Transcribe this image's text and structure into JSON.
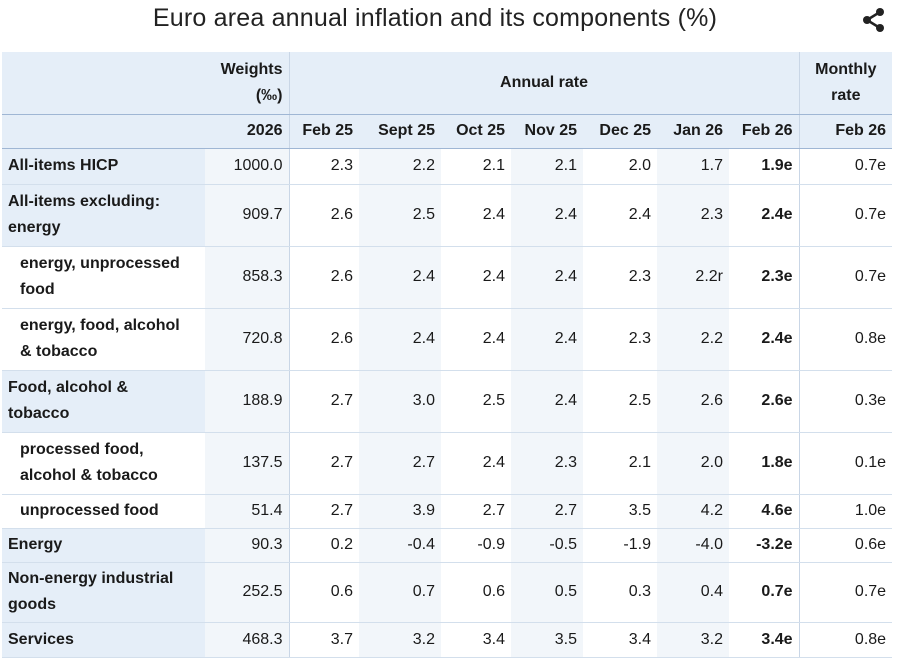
{
  "title": "Euro area annual inflation and its components (%)",
  "icons": {
    "share": "share-icon"
  },
  "header": {
    "weights_line1": "Weights",
    "weights_line2": "(‰)",
    "annual_rate": "Annual rate",
    "monthly_line1": "Monthly",
    "monthly_line2": "rate",
    "weights_year": "2026",
    "periods": [
      "Feb 25",
      "Sept 25",
      "Oct 25",
      "Nov 25",
      "Dec 25",
      "Jan 26",
      "Feb 26"
    ],
    "monthly_period": "Feb 26"
  },
  "rows": [
    {
      "label": [
        "All-items HICP"
      ],
      "level": 0,
      "weight": "1000.0",
      "values": [
        "2.3",
        "2.2",
        "2.1",
        "2.1",
        "2.0",
        "1.7",
        "1.9e"
      ],
      "monthly": "0.7e"
    },
    {
      "label": [
        "All-items excluding:",
        "energy"
      ],
      "level": 0,
      "weight": "909.7",
      "values": [
        "2.6",
        "2.5",
        "2.4",
        "2.4",
        "2.4",
        "2.3",
        "2.4e"
      ],
      "monthly": "0.7e"
    },
    {
      "label": [
        "energy, unprocessed",
        "food"
      ],
      "level": 1,
      "weight": "858.3",
      "values": [
        "2.6",
        "2.4",
        "2.4",
        "2.4",
        "2.3",
        "2.2r",
        "2.3e"
      ],
      "monthly": "0.7e"
    },
    {
      "label": [
        "energy, food, alcohol",
        "& tobacco"
      ],
      "level": 1,
      "weight": "720.8",
      "values": [
        "2.6",
        "2.4",
        "2.4",
        "2.4",
        "2.3",
        "2.2",
        "2.4e"
      ],
      "monthly": "0.8e"
    },
    {
      "label": [
        "Food, alcohol &",
        "tobacco"
      ],
      "level": 0,
      "weight": "188.9",
      "values": [
        "2.7",
        "3.0",
        "2.5",
        "2.4",
        "2.5",
        "2.6",
        "2.6e"
      ],
      "monthly": "0.3e"
    },
    {
      "label": [
        "processed food,",
        "alcohol & tobacco"
      ],
      "level": 1,
      "weight": "137.5",
      "values": [
        "2.7",
        "2.7",
        "2.4",
        "2.3",
        "2.1",
        "2.0",
        "1.8e"
      ],
      "monthly": "0.1e"
    },
    {
      "label": [
        "unprocessed food"
      ],
      "level": 1,
      "weight": "51.4",
      "values": [
        "2.7",
        "3.9",
        "2.7",
        "2.7",
        "3.5",
        "4.2",
        "4.6e"
      ],
      "monthly": "1.0e"
    },
    {
      "label": [
        "Energy"
      ],
      "level": 0,
      "weight": "90.3",
      "values": [
        "0.2",
        "-0.4",
        "-0.9",
        "-0.5",
        "-1.9",
        "-4.0",
        "-3.2e"
      ],
      "monthly": "0.6e"
    },
    {
      "label": [
        "Non-energy industrial",
        "goods"
      ],
      "level": 0,
      "weight": "252.5",
      "values": [
        "0.6",
        "0.7",
        "0.6",
        "0.5",
        "0.3",
        "0.4",
        "0.7e"
      ],
      "monthly": "0.7e"
    },
    {
      "label": [
        "Services"
      ],
      "level": 0,
      "weight": "468.3",
      "values": [
        "3.7",
        "3.2",
        "3.4",
        "3.5",
        "3.4",
        "3.2",
        "3.4e"
      ],
      "monthly": "0.8e"
    }
  ]
}
